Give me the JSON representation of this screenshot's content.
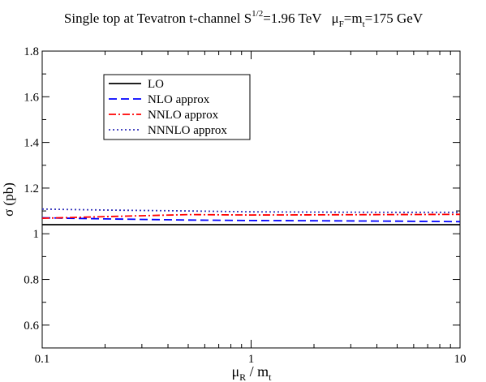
{
  "chart_data": {
    "type": "line",
    "title": {
      "prefix": "Single top at Tevatron  t-channel  S",
      "sup": "1/2",
      "energy": "=1.96 TeV",
      "mu": "μ",
      "mu_sub": "F",
      "eq": "=m",
      "m_sub": "t",
      "mass": "=175 GeV"
    },
    "xlabel": {
      "mu": "μ",
      "sub": "R",
      "slash": " / m",
      "sub2": "t"
    },
    "ylabel": "σ  (pb)",
    "xscale": "log",
    "xlim": [
      0.1,
      10
    ],
    "ylim": [
      0.5,
      1.8
    ],
    "xticks": [
      {
        "value": 0.1,
        "label": "0.1"
      },
      {
        "value": 1,
        "label": "1"
      },
      {
        "value": 10,
        "label": "10"
      }
    ],
    "yticks": [
      {
        "value": 0.6,
        "label": "0.6"
      },
      {
        "value": 0.8,
        "label": "0.8"
      },
      {
        "value": 1.0,
        "label": "1"
      },
      {
        "value": 1.2,
        "label": "1.2"
      },
      {
        "value": 1.4,
        "label": "1.4"
      },
      {
        "value": 1.6,
        "label": "1.6"
      },
      {
        "value": 1.8,
        "label": "1.8"
      }
    ],
    "legend_position": "top-left",
    "grid": false,
    "x": [
      0.1,
      0.2,
      0.5,
      1,
      2,
      5,
      10
    ],
    "series": [
      {
        "name": "LO",
        "color": "#000000",
        "dash": "solid",
        "values": [
          1.04,
          1.04,
          1.04,
          1.04,
          1.04,
          1.04,
          1.04
        ]
      },
      {
        "name": "NLO approx",
        "color": "#0000ff",
        "dash": "dashed",
        "values": [
          1.07,
          1.065,
          1.06,
          1.058,
          1.057,
          1.055,
          1.053
        ]
      },
      {
        "name": "NNLO approx",
        "color": "#ff0000",
        "dash": "dashdot",
        "values": [
          1.068,
          1.075,
          1.084,
          1.082,
          1.083,
          1.084,
          1.085
        ]
      },
      {
        "name": "NNNLO approx",
        "color": "#3333bb",
        "dash": "dotted",
        "values": [
          1.108,
          1.104,
          1.1,
          1.096,
          1.095,
          1.094,
          1.094
        ]
      }
    ]
  }
}
